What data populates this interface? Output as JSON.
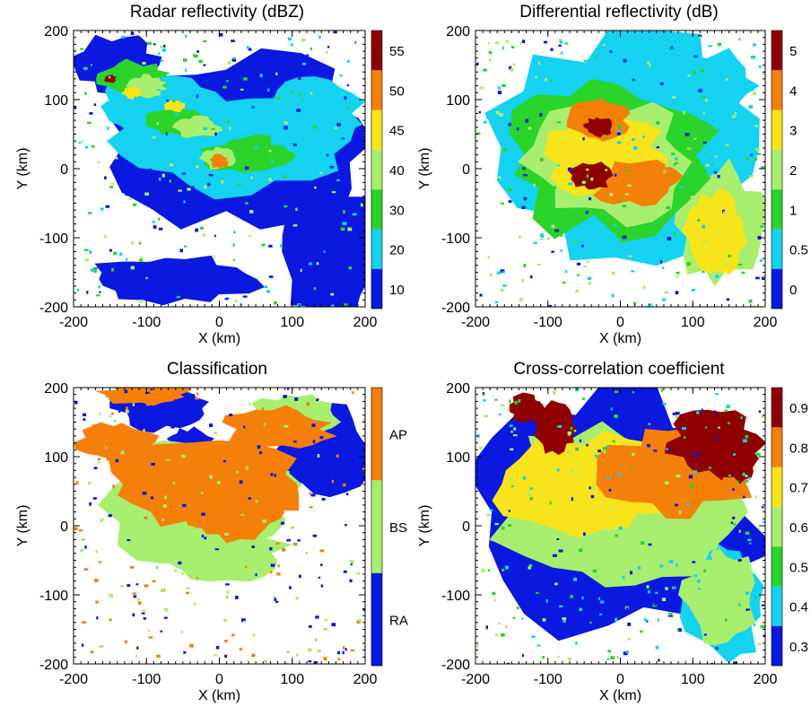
{
  "chart_data": [
    {
      "type": "heatmap",
      "title": "Radar reflectivity (dBZ)",
      "xlabel": "X (km)",
      "ylabel": "Y (km)",
      "xlim": [
        -200,
        200
      ],
      "ylim": [
        -200,
        200
      ],
      "xticks": [
        "-200",
        "-100",
        "0",
        "100",
        "200"
      ],
      "yticks": [
        "-200",
        "-100",
        "0",
        "100",
        "200"
      ],
      "colorbar": {
        "levels": [
          10,
          20,
          30,
          40,
          45,
          50,
          55
        ],
        "labels": [
          "10",
          "20",
          "30",
          "40",
          "45",
          "50",
          "55"
        ],
        "colors": [
          "#0a18e0",
          "#14d2f0",
          "#2ad42a",
          "#a8ee6e",
          "#f8e41a",
          "#f4800a",
          "#8e0000"
        ]
      },
      "grid": false
    },
    {
      "type": "heatmap",
      "title": "Differential reflectivity (dB)",
      "xlabel": "X (km)",
      "ylabel": "Y (km)",
      "xlim": [
        -200,
        200
      ],
      "ylim": [
        -200,
        200
      ],
      "xticks": [
        "-200",
        "-100",
        "0",
        "100",
        "200"
      ],
      "yticks": [
        "-200",
        "-100",
        "0",
        "100",
        "200"
      ],
      "colorbar": {
        "levels": [
          0,
          0.5,
          1,
          2,
          3,
          4,
          5
        ],
        "labels": [
          "0",
          "0.5",
          "1",
          "2",
          "3",
          "4",
          "5"
        ],
        "colors": [
          "#0a18e0",
          "#14d2f0",
          "#2ad42a",
          "#a8ee6e",
          "#f8e41a",
          "#f4800a",
          "#8e0000"
        ]
      },
      "grid": false
    },
    {
      "type": "heatmap",
      "title": "Classification",
      "xlabel": "X (km)",
      "ylabel": "Y (km)",
      "xlim": [
        -200,
        200
      ],
      "ylim": [
        -200,
        200
      ],
      "xticks": [
        "-200",
        "-100",
        "0",
        "100",
        "200"
      ],
      "yticks": [
        "-200",
        "-100",
        "0",
        "100",
        "200"
      ],
      "colorbar": {
        "categories": [
          "RA",
          "BS",
          "AP"
        ],
        "colors": [
          "#0a18e0",
          "#a8ee6e",
          "#f4800a"
        ]
      },
      "grid": false
    },
    {
      "type": "heatmap",
      "title": "Cross-correlation coefficient",
      "xlabel": "X (km)",
      "ylabel": "Y (km)",
      "xlim": [
        -200,
        200
      ],
      "ylim": [
        -200,
        200
      ],
      "xticks": [
        "-200",
        "-100",
        "0",
        "100",
        "200"
      ],
      "yticks": [
        "-200",
        "-100",
        "0",
        "100",
        "200"
      ],
      "colorbar": {
        "levels": [
          0.3,
          0.4,
          0.5,
          0.6,
          0.7,
          0.8,
          0.9
        ],
        "labels": [
          "0.3",
          "0.4",
          "0.5",
          "0.6",
          "0.7",
          "0.8",
          "0.9"
        ],
        "colors": [
          "#0a18e0",
          "#14d2f0",
          "#2ad42a",
          "#a8ee6e",
          "#f8e41a",
          "#f4800a",
          "#8e0000"
        ]
      },
      "grid": false
    }
  ]
}
